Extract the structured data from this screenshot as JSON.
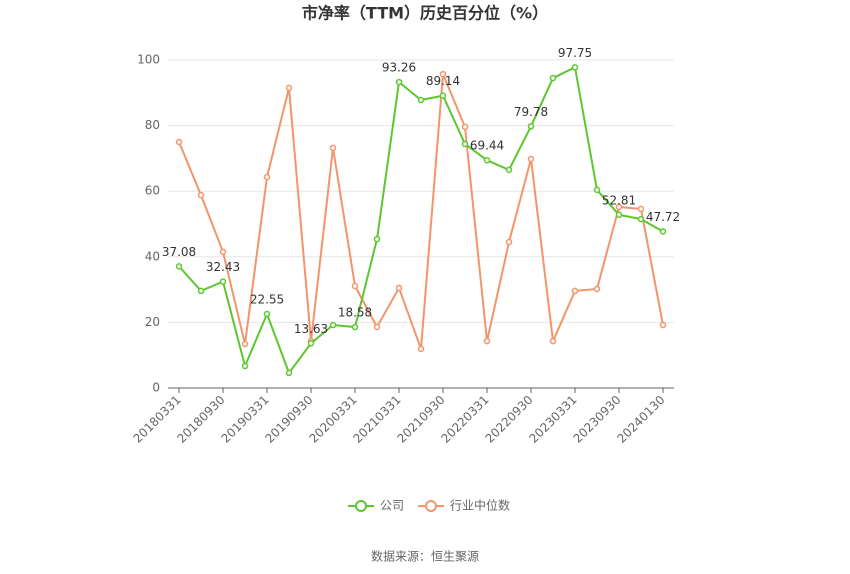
{
  "chart_data": {
    "type": "line",
    "title": "市净率（TTM）历史百分位（%）",
    "categories": [
      "20180331",
      null,
      "20180930",
      null,
      "20190331",
      null,
      "20190930",
      null,
      "20200331",
      null,
      "20210331",
      null,
      "20210930",
      null,
      "20220331",
      null,
      "20220930",
      null,
      "20230331",
      null,
      "20230930",
      null,
      "20240130"
    ],
    "series": [
      {
        "name": "公司",
        "color": "#5cc72e",
        "values": [
          37.08,
          29.6,
          32.43,
          6.7,
          22.55,
          4.6,
          13.63,
          19.2,
          18.58,
          45.4,
          93.26,
          87.8,
          89.14,
          74.4,
          69.44,
          66.5,
          79.78,
          94.5,
          97.75,
          60.4,
          52.81,
          51.5,
          47.72
        ],
        "value_labels": [
          "37.08",
          null,
          "32.43",
          null,
          "22.55",
          null,
          "13.63",
          null,
          "18.58",
          null,
          "93.26",
          null,
          "89.14",
          null,
          "69.44",
          null,
          "79.78",
          null,
          "97.75",
          null,
          "52.81",
          null,
          "47.72"
        ]
      },
      {
        "name": "行业中位数",
        "color": "#f2956b",
        "values": [
          75.0,
          58.8,
          41.5,
          13.4,
          64.3,
          91.5,
          14.3,
          73.2,
          31.1,
          18.6,
          30.5,
          11.9,
          95.7,
          79.6,
          14.3,
          44.5,
          69.8,
          14.3,
          29.6,
          30.2,
          55.2,
          54.6,
          19.2
        ]
      }
    ],
    "ylim": [
      0,
      100
    ],
    "yticks": [
      0,
      20,
      40,
      60,
      80,
      100
    ],
    "grid": true,
    "legend": "bottom",
    "source": "数据来源：恒生聚源"
  }
}
